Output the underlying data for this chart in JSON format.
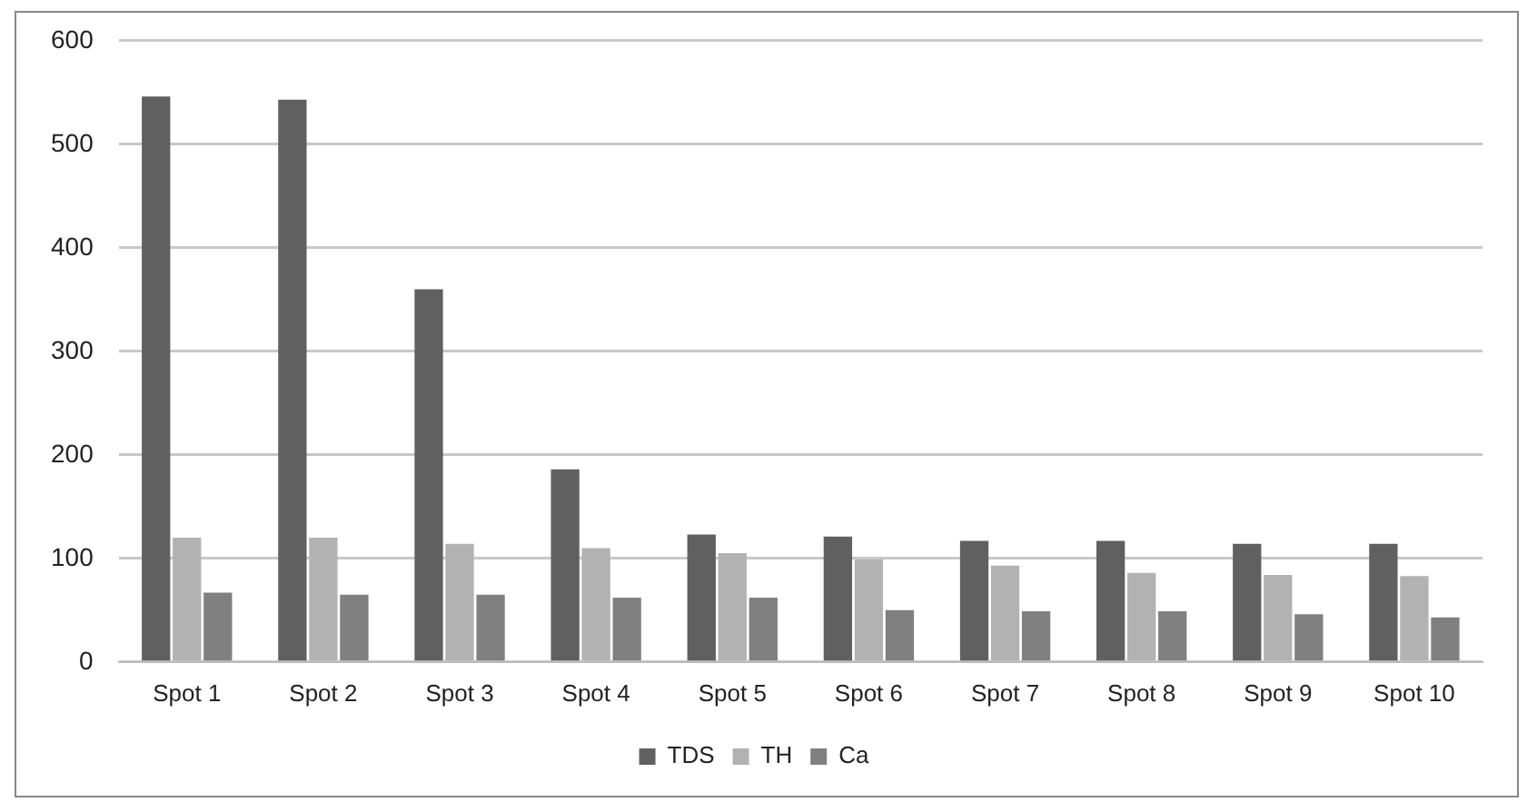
{
  "chart_data": {
    "type": "bar",
    "categories": [
      "Spot 1",
      "Spot 2",
      "Spot 3",
      "Spot 4",
      "Spot 5",
      "Spot 6",
      "Spot 7",
      "Spot 8",
      "Spot 9",
      "Spot 10"
    ],
    "series": [
      {
        "name": "TDS",
        "color": "#606060",
        "values": [
          546,
          543,
          360,
          186,
          123,
          121,
          117,
          117,
          114,
          114
        ]
      },
      {
        "name": "TH",
        "color": "#b2b2b2",
        "values": [
          120,
          120,
          114,
          110,
          105,
          99,
          93,
          86,
          84,
          83
        ]
      },
      {
        "name": "Ca",
        "color": "#808080",
        "values": [
          67,
          65,
          65,
          62,
          62,
          50,
          49,
          49,
          46,
          43
        ]
      }
    ],
    "ylim": [
      0,
      600
    ],
    "yticks": [
      0,
      100,
      200,
      300,
      400,
      500,
      600
    ],
    "grid": "y",
    "legend": "bottom"
  }
}
